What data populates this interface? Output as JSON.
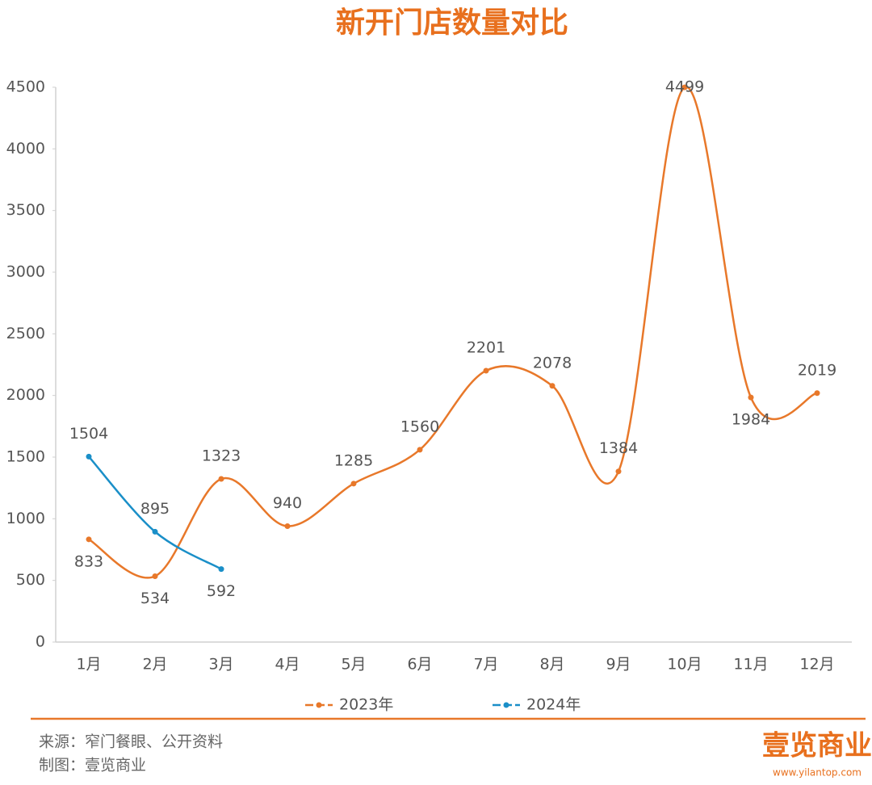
{
  "chart_data": {
    "type": "line",
    "title": "新开门店数量对比",
    "categories": [
      "1月",
      "2月",
      "3月",
      "4月",
      "5月",
      "6月",
      "7月",
      "8月",
      "9月",
      "10月",
      "11月",
      "12月"
    ],
    "series": [
      {
        "name": "2023年",
        "color": "#e8782a",
        "values": [
          833,
          534,
          1323,
          940,
          1285,
          1560,
          2201,
          2078,
          1384,
          4499,
          1984,
          2019
        ]
      },
      {
        "name": "2024年",
        "color": "#1a8fc8",
        "values": [
          1504,
          895,
          592,
          null,
          null,
          null,
          null,
          null,
          null,
          null,
          null,
          null
        ]
      }
    ],
    "ylim": [
      0,
      4500
    ],
    "yticks": [
      0,
      500,
      1000,
      1500,
      2000,
      2500,
      3000,
      3500,
      4000,
      4500
    ],
    "smooth": true,
    "grid": false,
    "legend": "bottom"
  },
  "footer": {
    "source": "来源：窄门餐眼、公开资料",
    "maker": "制图：壹览商业",
    "logo": "壹览商业",
    "url": "www.yilantop.com"
  }
}
